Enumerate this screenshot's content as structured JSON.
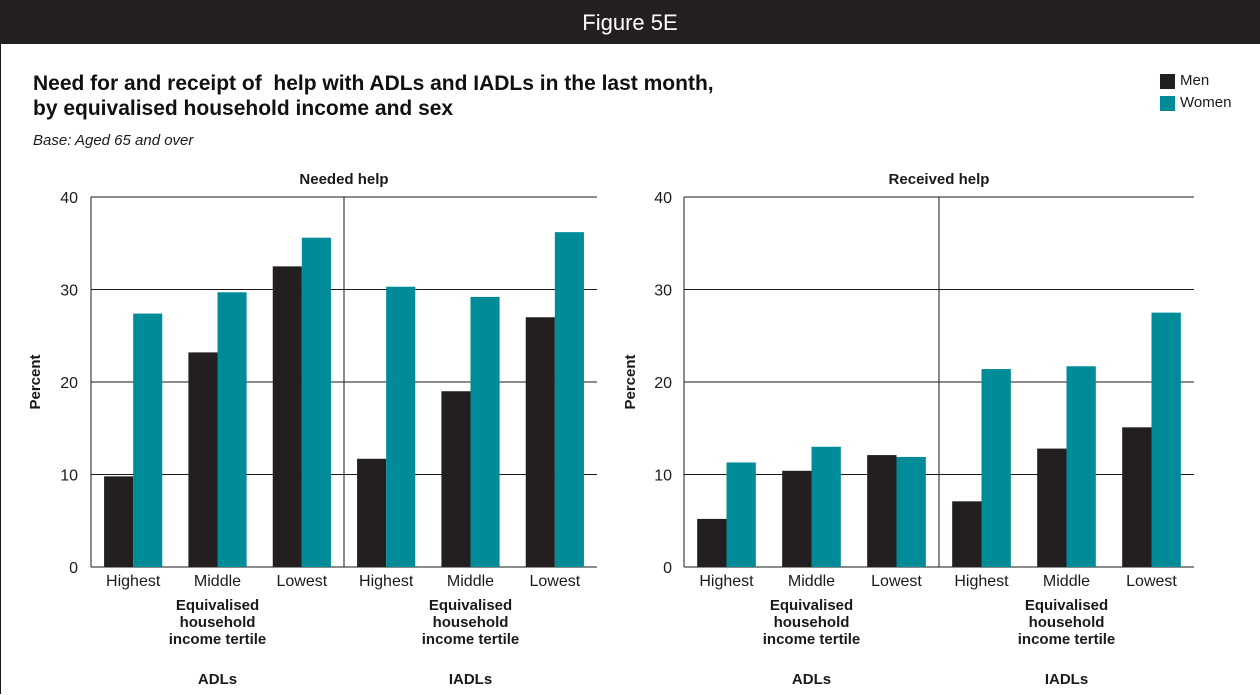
{
  "header": {
    "figure_label": "Figure 5E"
  },
  "title_line1": "Need for and receipt of  help with ADLs and IADLs in the last month,",
  "title_line2": "by equivalised household income and sex",
  "subtitle": "Base: Aged 65 and over",
  "colors": {
    "men": "#231f20",
    "women": "#008b99",
    "axis": "#1a1a1a"
  },
  "legend": [
    {
      "label": "Men",
      "color": "#231f20"
    },
    {
      "label": "Women",
      "color": "#008b99"
    }
  ],
  "chart_data": [
    {
      "type": "bar",
      "title": "Needed help",
      "ylabel": "Percent",
      "ylim": [
        0,
        40
      ],
      "yticks": [
        0,
        10,
        20,
        30,
        40
      ],
      "grid": true,
      "groups": [
        {
          "label": "ADLs",
          "xlabel": "Equivalised household income tertile",
          "categories": [
            "Highest",
            "Middle",
            "Lowest"
          ]
        },
        {
          "label": "IADLs",
          "xlabel": "Equivalised household income tertile",
          "categories": [
            "Highest",
            "Middle",
            "Lowest"
          ]
        }
      ],
      "series": [
        {
          "name": "Men",
          "values": [
            9.8,
            23.2,
            32.5,
            11.7,
            19.0,
            27.0
          ]
        },
        {
          "name": "Women",
          "values": [
            27.4,
            29.7,
            35.6,
            30.3,
            29.2,
            36.2
          ]
        }
      ]
    },
    {
      "type": "bar",
      "title": "Received help",
      "ylabel": "Percent",
      "ylim": [
        0,
        40
      ],
      "yticks": [
        0,
        10,
        20,
        30,
        40
      ],
      "grid": true,
      "groups": [
        {
          "label": "ADLs",
          "xlabel": "Equivalised household income tertile",
          "categories": [
            "Highest",
            "Middle",
            "Lowest"
          ]
        },
        {
          "label": "IADLs",
          "xlabel": "Equivalised household income tertile",
          "categories": [
            "Highest",
            "Middle",
            "Lowest"
          ]
        }
      ],
      "series": [
        {
          "name": "Men",
          "values": [
            5.2,
            10.4,
            12.1,
            7.1,
            12.8,
            15.1
          ]
        },
        {
          "name": "Women",
          "values": [
            11.3,
            13.0,
            11.9,
            21.4,
            21.7,
            27.5
          ]
        }
      ]
    }
  ]
}
